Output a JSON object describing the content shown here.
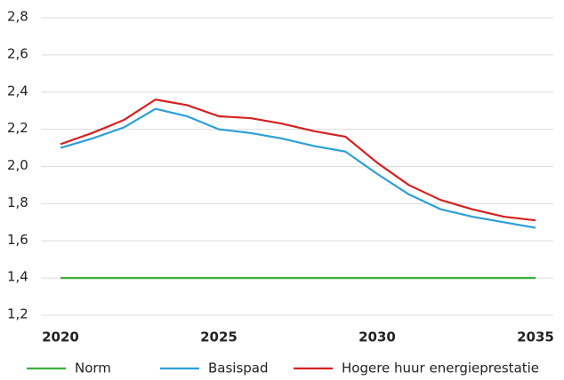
{
  "chart_data": {
    "type": "line",
    "x": [
      2020,
      2021,
      2022,
      2023,
      2024,
      2025,
      2026,
      2027,
      2028,
      2029,
      2030,
      2031,
      2032,
      2033,
      2034,
      2035
    ],
    "xlim": [
      2020,
      2035
    ],
    "xticks": [
      2020,
      2025,
      2030,
      2035
    ],
    "ylim": [
      1.2,
      2.8
    ],
    "yticks": [
      {
        "value": 1.2,
        "label": "1,2"
      },
      {
        "value": 1.4,
        "label": "1,4"
      },
      {
        "value": 1.6,
        "label": "1,6"
      },
      {
        "value": 1.8,
        "label": "1,8"
      },
      {
        "value": 2.0,
        "label": "2,0"
      },
      {
        "value": 2.2,
        "label": "2,2"
      },
      {
        "value": 2.4,
        "label": "2,4"
      },
      {
        "value": 2.6,
        "label": "2,6"
      },
      {
        "value": 2.8,
        "label": "2,8"
      }
    ],
    "grid": true,
    "legend": "bottom",
    "series": [
      {
        "name": "Norm",
        "color": "#3cae3c",
        "values": [
          1.4,
          1.4,
          1.4,
          1.4,
          1.4,
          1.4,
          1.4,
          1.4,
          1.4,
          1.4,
          1.4,
          1.4,
          1.4,
          1.4,
          1.4,
          1.4
        ]
      },
      {
        "name": "Basispad",
        "color": "#2a9fd8",
        "values": [
          2.1,
          2.15,
          2.21,
          2.31,
          2.27,
          2.2,
          2.18,
          2.15,
          2.11,
          2.08,
          1.96,
          1.85,
          1.77,
          1.73,
          1.7,
          1.67
        ]
      },
      {
        "name": "Hogere huur energieprestatie",
        "color": "#d62020",
        "values": [
          2.12,
          2.18,
          2.25,
          2.36,
          2.33,
          2.27,
          2.26,
          2.23,
          2.19,
          2.16,
          2.02,
          1.9,
          1.82,
          1.77,
          1.73,
          1.71
        ]
      }
    ]
  }
}
